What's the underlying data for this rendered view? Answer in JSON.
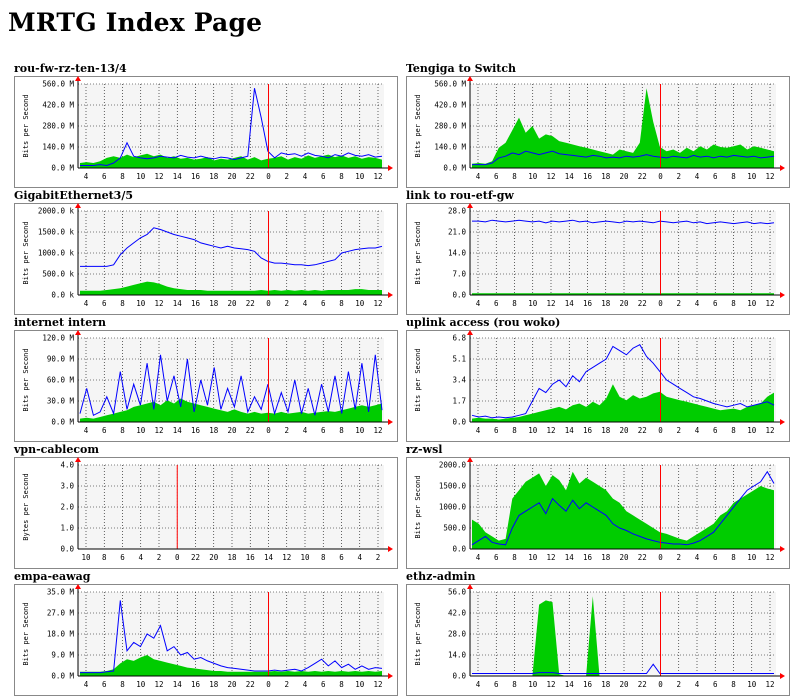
{
  "page": {
    "title": "MRTG Index Page"
  },
  "colors": {
    "in": "#00cc00",
    "out": "#0000ff",
    "now": "#ff0000",
    "bg": "#f5f5f5",
    "frame": "#888888"
  },
  "graphs": [
    {
      "title": "rou-fw-rz-ten-13/4",
      "ylabel": "Bits per Second",
      "yticks": [
        "560.0 M",
        "420.0 M",
        "280.0 M",
        "140.0 M",
        "0.0 M"
      ],
      "xticks": [
        "4",
        "6",
        "8",
        "10",
        "12",
        "14",
        "16",
        "18",
        "20",
        "22",
        "0",
        "2",
        "4",
        "6",
        "8",
        "10",
        "12"
      ],
      "in_series": [
        6,
        7,
        6,
        8,
        12,
        14,
        12,
        16,
        13,
        15,
        17,
        14,
        16,
        12,
        14,
        11,
        12,
        10,
        11,
        13,
        9,
        11,
        10,
        12,
        14,
        10,
        13,
        9,
        11,
        12,
        14,
        10,
        13,
        11,
        15,
        12,
        14,
        16,
        13,
        15,
        12,
        14,
        11,
        13,
        12,
        10
      ],
      "out_series": [
        3,
        3,
        3,
        4,
        3,
        6,
        12,
        30,
        14,
        12,
        11,
        12,
        14,
        13,
        12,
        15,
        13,
        12,
        14,
        12,
        11,
        13,
        12,
        10,
        12,
        14,
        95,
        60,
        20,
        12,
        18,
        16,
        17,
        14,
        18,
        15,
        14,
        12,
        16,
        14,
        18,
        15,
        14,
        16,
        13,
        14
      ]
    },
    {
      "title": "Tengiga to Switch",
      "ylabel": "Bits per Second",
      "yticks": [
        "560.0 M",
        "420.0 M",
        "280.0 M",
        "140.0 M",
        "0.0 M"
      ],
      "xticks": [
        "4",
        "6",
        "8",
        "10",
        "12",
        "14",
        "16",
        "18",
        "20",
        "22",
        "0",
        "2",
        "4",
        "6",
        "8",
        "10",
        "12"
      ],
      "in_series": [
        5,
        6,
        5,
        8,
        24,
        30,
        45,
        60,
        42,
        50,
        35,
        40,
        38,
        32,
        30,
        28,
        26,
        24,
        22,
        20,
        18,
        16,
        22,
        20,
        18,
        30,
        95,
        55,
        25,
        20,
        22,
        18,
        24,
        20,
        26,
        22,
        28,
        25,
        24,
        26,
        28,
        22,
        26,
        24,
        22,
        20
      ],
      "out_series": [
        4,
        4,
        4,
        6,
        12,
        14,
        18,
        16,
        20,
        18,
        16,
        18,
        20,
        17,
        16,
        15,
        14,
        13,
        15,
        14,
        12,
        13,
        12,
        14,
        13,
        14,
        16,
        14,
        13,
        12,
        14,
        13,
        12,
        15,
        13,
        14,
        12,
        14,
        13,
        15,
        14,
        13,
        14,
        12,
        13,
        14
      ]
    },
    {
      "title": "GigabitEthernet3/5",
      "ylabel": "Bits per Second",
      "yticks": [
        "2000.0 k",
        "1500.0 k",
        "1000.0 k",
        "500.0 k",
        "0.0 k"
      ],
      "xticks": [
        "4",
        "6",
        "8",
        "10",
        "12",
        "14",
        "16",
        "18",
        "20",
        "22",
        "0",
        "2",
        "4",
        "6",
        "8",
        "10",
        "12"
      ],
      "in_series": [
        5,
        5,
        5,
        5,
        6,
        7,
        8,
        10,
        12,
        14,
        16,
        15,
        13,
        10,
        8,
        7,
        6,
        6,
        6,
        5,
        5,
        5,
        5,
        5,
        5,
        5,
        5,
        6,
        5,
        6,
        5,
        6,
        5,
        6,
        5,
        6,
        5,
        6,
        6,
        6,
        6,
        7,
        7,
        6,
        6,
        6
      ],
      "out_series": [
        34,
        34,
        34,
        34,
        34,
        36,
        48,
        56,
        62,
        68,
        72,
        80,
        78,
        75,
        72,
        70,
        68,
        66,
        62,
        60,
        58,
        56,
        58,
        56,
        55,
        54,
        52,
        44,
        40,
        38,
        38,
        37,
        36,
        36,
        35,
        36,
        38,
        40,
        42,
        50,
        52,
        54,
        55,
        56,
        56,
        58
      ]
    },
    {
      "title": "link to rou-etf-gw",
      "ylabel": "Bits per Second",
      "yticks": [
        "28.0",
        "21.0",
        "14.0",
        "7.0",
        "0.0"
      ],
      "xticks": [
        "4",
        "6",
        "8",
        "10",
        "12",
        "14",
        "16",
        "18",
        "20",
        "22",
        "0",
        "2",
        "4",
        "6",
        "8",
        "10",
        "12"
      ],
      "in_series": [
        2,
        2,
        2,
        2,
        2,
        2,
        2,
        2,
        2,
        2,
        2,
        2,
        2,
        2,
        2,
        2,
        2,
        2,
        2,
        2,
        2,
        2,
        2,
        2,
        2,
        2,
        2,
        2,
        2,
        2,
        2,
        2,
        2,
        2,
        2,
        2,
        2,
        2,
        2,
        2,
        2,
        2,
        2,
        2,
        2,
        2
      ],
      "out_series": [
        88,
        88,
        87,
        89,
        88,
        87,
        88,
        89,
        88,
        87,
        88,
        86,
        88,
        87,
        88,
        89,
        87,
        88,
        86,
        87,
        88,
        87,
        86,
        88,
        87,
        88,
        87,
        86,
        88,
        87,
        86,
        87,
        88,
        86,
        87,
        85,
        86,
        87,
        86,
        85,
        86,
        87,
        85,
        86,
        85,
        86
      ]
    },
    {
      "title": "internet intern",
      "ylabel": "Bits per Second",
      "yticks": [
        "120.0 M",
        "90.0 M",
        "60.0 M",
        "30.0 M",
        "0.0 M"
      ],
      "xticks": [
        "4",
        "6",
        "8",
        "10",
        "12",
        "14",
        "16",
        "18",
        "20",
        "22",
        "0",
        "2",
        "4",
        "6",
        "8",
        "10",
        "12"
      ],
      "in_series": [
        4,
        5,
        4,
        6,
        8,
        10,
        12,
        14,
        18,
        20,
        22,
        24,
        20,
        26,
        22,
        28,
        24,
        22,
        20,
        18,
        16,
        14,
        12,
        15,
        12,
        10,
        12,
        10,
        11,
        10,
        12,
        10,
        11,
        12,
        10,
        11,
        12,
        13,
        12,
        14,
        16,
        18,
        20,
        18,
        20,
        22
      ],
      "out_series": [
        10,
        40,
        8,
        12,
        30,
        10,
        60,
        15,
        45,
        20,
        70,
        15,
        80,
        25,
        55,
        18,
        75,
        12,
        50,
        20,
        65,
        15,
        40,
        18,
        55,
        12,
        30,
        15,
        45,
        10,
        35,
        12,
        50,
        10,
        40,
        8,
        45,
        12,
        55,
        10,
        60,
        15,
        70,
        12,
        80,
        14
      ]
    },
    {
      "title": "uplink access (rou woko)",
      "ylabel": "Bits per Second",
      "yticks": [
        "6.8",
        "5.1",
        "3.4",
        "1.7",
        "0.0"
      ],
      "xticks": [
        "4",
        "6",
        "8",
        "10",
        "12",
        "14",
        "16",
        "18",
        "20",
        "22",
        "0",
        "2",
        "4",
        "6",
        "8",
        "10",
        "12"
      ],
      "in_series": [
        4,
        5,
        4,
        4,
        3,
        4,
        5,
        6,
        8,
        10,
        12,
        14,
        16,
        18,
        15,
        20,
        22,
        18,
        24,
        20,
        28,
        45,
        30,
        26,
        32,
        28,
        30,
        34,
        36,
        30,
        28,
        26,
        24,
        22,
        20,
        18,
        16,
        14,
        15,
        16,
        14,
        18,
        20,
        22,
        30,
        35
      ],
      "out_series": [
        8,
        6,
        7,
        5,
        6,
        5,
        6,
        8,
        10,
        25,
        40,
        35,
        45,
        50,
        42,
        55,
        48,
        60,
        65,
        70,
        75,
        90,
        85,
        80,
        88,
        92,
        78,
        70,
        60,
        50,
        45,
        40,
        35,
        30,
        28,
        25,
        22,
        20,
        18,
        20,
        22,
        18,
        20,
        22,
        24,
        20
      ]
    },
    {
      "title": "vpn-cablecom",
      "ylabel": "Bytes per Second",
      "yticks": [
        "4.0",
        "3.0",
        "2.0",
        "1.0",
        "0.0"
      ],
      "xticks": [
        "10",
        "8",
        "6",
        "4",
        "2",
        "0",
        "22",
        "20",
        "18",
        "16",
        "14",
        "12",
        "10",
        "8",
        "6",
        "4",
        "2"
      ],
      "in_series": [],
      "out_series": []
    },
    {
      "title": "rz-wsl",
      "ylabel": "Bits per Second",
      "yticks": [
        "2000.0",
        "1500.0",
        "1000.0",
        "500.0",
        "0.0"
      ],
      "xticks": [
        "4",
        "6",
        "8",
        "10",
        "12",
        "14",
        "16",
        "18",
        "20",
        "22",
        "0",
        "2",
        "4",
        "6",
        "8",
        "10",
        "12"
      ],
      "in_series": [
        35,
        30,
        20,
        15,
        10,
        12,
        60,
        70,
        80,
        85,
        90,
        75,
        88,
        82,
        70,
        92,
        78,
        85,
        80,
        75,
        70,
        60,
        55,
        45,
        40,
        35,
        30,
        25,
        20,
        18,
        15,
        12,
        10,
        15,
        20,
        25,
        30,
        40,
        45,
        55,
        60,
        65,
        70,
        75,
        72,
        70
      ],
      "out_series": [
        5,
        10,
        15,
        8,
        6,
        5,
        25,
        40,
        45,
        50,
        55,
        42,
        60,
        52,
        45,
        58,
        48,
        55,
        50,
        45,
        40,
        30,
        25,
        22,
        18,
        15,
        12,
        10,
        8,
        7,
        6,
        6,
        5,
        7,
        10,
        15,
        20,
        30,
        40,
        50,
        60,
        70,
        75,
        80,
        92,
        78
      ]
    },
    {
      "title": "empa-eawag",
      "ylabel": "Bits per Second",
      "yticks": [
        "35.0 M",
        "27.0 M",
        "18.0 M",
        "9.0 M",
        "0.0 M"
      ],
      "xticks": [
        "4",
        "6",
        "8",
        "10",
        "12",
        "14",
        "16",
        "18",
        "20",
        "22",
        "0",
        "2",
        "4",
        "6",
        "8",
        "10",
        "12"
      ],
      "in_series": [
        5,
        5,
        5,
        5,
        6,
        8,
        15,
        20,
        18,
        22,
        25,
        20,
        18,
        16,
        14,
        12,
        10,
        9,
        8,
        7,
        6,
        6,
        5,
        5,
        5,
        5,
        5,
        5,
        5,
        6,
        5,
        6,
        5,
        6,
        5,
        6,
        5,
        6,
        5,
        6,
        5,
        6,
        5,
        6,
        5,
        6
      ],
      "out_series": [
        4,
        4,
        4,
        4,
        5,
        6,
        90,
        30,
        40,
        35,
        50,
        45,
        60,
        30,
        35,
        25,
        28,
        20,
        22,
        18,
        15,
        12,
        10,
        9,
        8,
        7,
        6,
        6,
        6,
        7,
        6,
        7,
        8,
        6,
        10,
        15,
        20,
        12,
        18,
        10,
        14,
        8,
        12,
        8,
        10,
        9
      ]
    },
    {
      "title": "ethz-admin",
      "ylabel": "Bits per Second",
      "yticks": [
        "56.0",
        "42.0",
        "28.0",
        "14.0",
        "0.0"
      ],
      "xticks": [
        "4",
        "6",
        "8",
        "10",
        "12",
        "14",
        "16",
        "18",
        "20",
        "22",
        "0",
        "2",
        "4",
        "6",
        "8",
        "10",
        "12"
      ],
      "in_series": [
        0,
        0,
        0,
        0,
        0,
        0,
        0,
        0,
        0,
        0,
        85,
        90,
        88,
        2,
        0,
        0,
        0,
        0,
        95,
        0,
        0,
        0,
        0,
        0,
        0,
        0,
        0,
        0,
        0,
        0,
        0,
        0,
        0,
        0,
        0,
        0,
        0,
        0,
        0,
        0,
        0,
        0,
        0,
        0,
        0,
        0
      ],
      "out_series": [
        3,
        3,
        3,
        3,
        3,
        3,
        3,
        3,
        3,
        3,
        4,
        4,
        4,
        3,
        3,
        3,
        3,
        3,
        3,
        3,
        3,
        3,
        3,
        3,
        3,
        3,
        3,
        14,
        3,
        3,
        3,
        3,
        3,
        3,
        3,
        3,
        3,
        3,
        3,
        3,
        3,
        3,
        3,
        3,
        3,
        3
      ]
    }
  ]
}
